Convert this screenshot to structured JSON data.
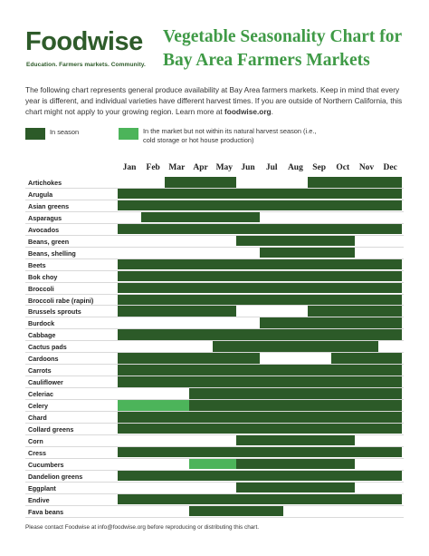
{
  "brand": {
    "name": "Foodwise",
    "tagline": "Education. Farmers markets. Community."
  },
  "title": "Vegetable Seasonality Chart for Bay Area Farmers Markets",
  "intro": {
    "text": "The following chart represents general produce availability at Bay Area farmers markets. Keep in mind that every year is different, and individual varieties have different harvest times. If you are outside of Northern California, this chart might not apply to your growing region. Learn more at ",
    "link": "foodwise.org",
    "end": "."
  },
  "legend": {
    "in_season": "In season",
    "off_season": "In the market but not within its natural harvest season (i.e., cold storage or hot house production)"
  },
  "colors": {
    "in_season": "#2c5a28",
    "off_season": "#4cb45a",
    "empty": "#ffffff"
  },
  "months": [
    "Jan",
    "Feb",
    "Mar",
    "Apr",
    "May",
    "Jun",
    "Jul",
    "Aug",
    "Sep",
    "Oct",
    "Nov",
    "Dec"
  ],
  "rows": [
    {
      "name": "Artichokes",
      "cells": [
        0,
        0,
        1,
        1,
        1,
        0,
        0,
        0,
        1,
        1,
        1,
        1
      ]
    },
    {
      "name": "Arugula",
      "cells": [
        1,
        1,
        1,
        1,
        1,
        1,
        1,
        1,
        1,
        1,
        1,
        1
      ]
    },
    {
      "name": "Asian greens",
      "cells": [
        1,
        1,
        1,
        1,
        1,
        1,
        1,
        1,
        1,
        1,
        1,
        1
      ]
    },
    {
      "name": "Asparagus",
      "cells": [
        0,
        1,
        1,
        1,
        1,
        1,
        0,
        0,
        0,
        0,
        0,
        0
      ]
    },
    {
      "name": "Avocados",
      "cells": [
        1,
        1,
        1,
        1,
        1,
        1,
        1,
        1,
        1,
        1,
        1,
        1
      ]
    },
    {
      "name": "Beans, green",
      "cells": [
        0,
        0,
        0,
        0,
        0,
        1,
        1,
        1,
        1,
        1,
        0,
        0
      ]
    },
    {
      "name": "Beans, shelling",
      "cells": [
        0,
        0,
        0,
        0,
        0,
        0,
        1,
        1,
        1,
        1,
        0,
        0
      ]
    },
    {
      "name": "Beets",
      "cells": [
        1,
        1,
        1,
        1,
        1,
        1,
        1,
        1,
        1,
        1,
        1,
        1
      ]
    },
    {
      "name": "Bok choy",
      "cells": [
        1,
        1,
        1,
        1,
        1,
        1,
        1,
        1,
        1,
        1,
        1,
        1
      ]
    },
    {
      "name": "Broccoli",
      "cells": [
        1,
        1,
        1,
        1,
        1,
        1,
        1,
        1,
        1,
        1,
        1,
        1
      ]
    },
    {
      "name": "Broccoli rabe (rapini)",
      "cells": [
        1,
        1,
        1,
        1,
        1,
        1,
        1,
        1,
        1,
        1,
        1,
        1
      ]
    },
    {
      "name": "Brussels sprouts",
      "cells": [
        1,
        1,
        1,
        1,
        1,
        0,
        0,
        0,
        1,
        1,
        1,
        1
      ]
    },
    {
      "name": "Burdock",
      "cells": [
        0,
        0,
        0,
        0,
        0,
        0,
        1,
        1,
        1,
        1,
        1,
        1
      ]
    },
    {
      "name": "Cabbage",
      "cells": [
        1,
        1,
        1,
        1,
        1,
        1,
        1,
        1,
        1,
        1,
        1,
        1
      ]
    },
    {
      "name": "Cactus pads",
      "cells": [
        0,
        0,
        0,
        0,
        1,
        1,
        1,
        1,
        1,
        1,
        1,
        0
      ]
    },
    {
      "name": "Cardoons",
      "cells": [
        1,
        1,
        1,
        1,
        1,
        1,
        0,
        0,
        0,
        1,
        1,
        1
      ]
    },
    {
      "name": "Carrots",
      "cells": [
        1,
        1,
        1,
        1,
        1,
        1,
        1,
        1,
        1,
        1,
        1,
        1
      ]
    },
    {
      "name": "Cauliflower",
      "cells": [
        1,
        1,
        1,
        1,
        1,
        1,
        1,
        1,
        1,
        1,
        1,
        1
      ]
    },
    {
      "name": "Celeriac",
      "cells": [
        0,
        0,
        0,
        1,
        1,
        1,
        1,
        1,
        1,
        1,
        1,
        1
      ]
    },
    {
      "name": "Celery",
      "cells": [
        2,
        2,
        2,
        1,
        1,
        1,
        1,
        1,
        1,
        1,
        1,
        1
      ]
    },
    {
      "name": "Chard",
      "cells": [
        1,
        1,
        1,
        1,
        1,
        1,
        1,
        1,
        1,
        1,
        1,
        1
      ]
    },
    {
      "name": "Collard greens",
      "cells": [
        1,
        1,
        1,
        1,
        1,
        1,
        1,
        1,
        1,
        1,
        1,
        1
      ]
    },
    {
      "name": "Corn",
      "cells": [
        0,
        0,
        0,
        0,
        0,
        1,
        1,
        1,
        1,
        1,
        0,
        0
      ]
    },
    {
      "name": "Cress",
      "cells": [
        1,
        1,
        1,
        1,
        1,
        1,
        1,
        1,
        1,
        1,
        1,
        1
      ]
    },
    {
      "name": "Cucumbers",
      "cells": [
        0,
        0,
        0,
        2,
        2,
        1,
        1,
        1,
        1,
        1,
        0,
        0
      ]
    },
    {
      "name": "Dandelion greens",
      "cells": [
        1,
        1,
        1,
        1,
        1,
        1,
        1,
        1,
        1,
        1,
        1,
        1
      ]
    },
    {
      "name": "Eggplant",
      "cells": [
        0,
        0,
        0,
        0,
        0,
        1,
        1,
        1,
        1,
        1,
        0,
        0
      ]
    },
    {
      "name": "Endive",
      "cells": [
        1,
        1,
        1,
        1,
        1,
        1,
        1,
        1,
        1,
        1,
        1,
        1
      ]
    },
    {
      "name": "Fava beans",
      "cells": [
        0,
        0,
        0,
        1,
        1,
        1,
        1,
        0,
        0,
        0,
        0,
        0
      ]
    }
  ],
  "footer": "Please contact Foodwise at info@foodwise.org before reproducing or distributing this chart."
}
